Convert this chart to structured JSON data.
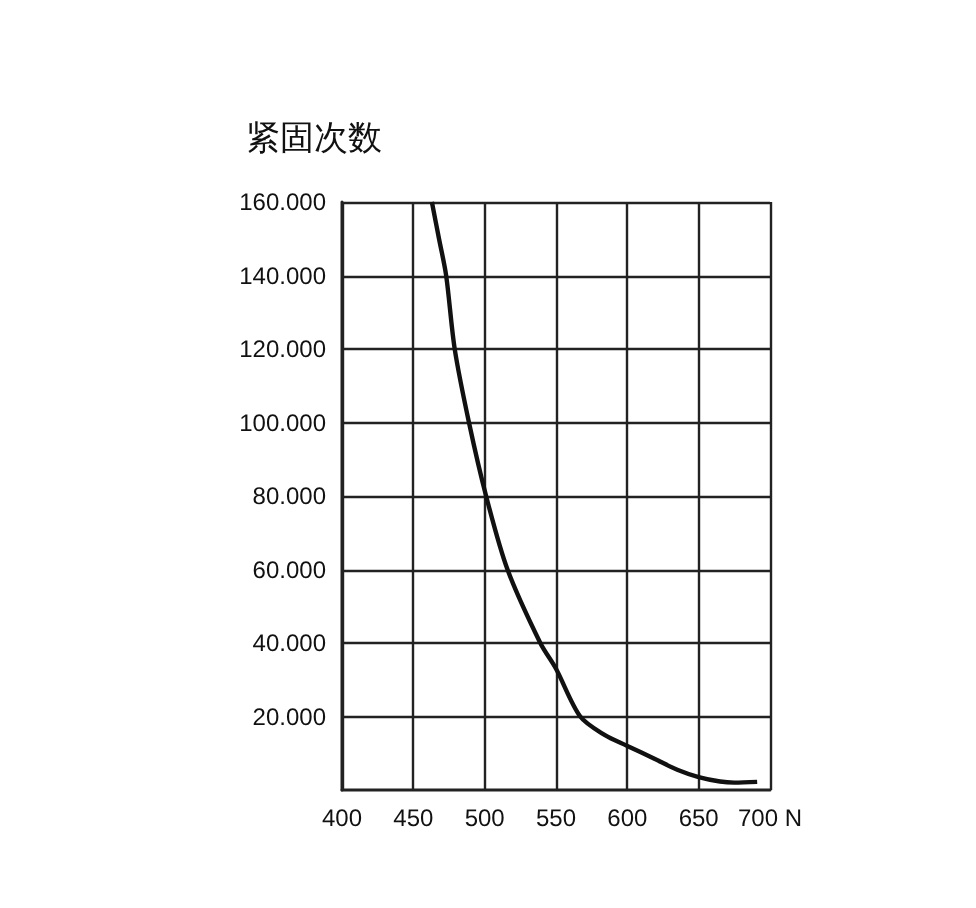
{
  "chart_data": {
    "type": "line",
    "title": "紧固次数",
    "x": [
      463,
      468,
      473,
      479,
      489,
      501,
      516,
      539,
      550,
      567,
      584,
      600,
      619,
      635,
      650,
      665,
      675,
      691
    ],
    "series": [
      {
        "color": "#111111",
        "values": [
          160000,
          150000,
          140000,
          120000,
          100000,
          80000,
          60000,
          40000,
          33000,
          20000,
          15000,
          12000,
          8500,
          5500,
          3500,
          2300,
          2000,
          2200
        ]
      }
    ],
    "xlim": [
      400,
      700
    ],
    "xticks": [
      400,
      450,
      500,
      550,
      600,
      650,
      {
        "value": 700,
        "label": "700 N"
      }
    ],
    "ylim": [
      0,
      160000
    ],
    "yticks": [
      {
        "value": 20000,
        "label": "20.000"
      },
      {
        "value": 40000,
        "label": "40.000"
      },
      {
        "value": 60000,
        "label": "60.000"
      },
      {
        "value": 80000,
        "label": "80.000"
      },
      {
        "value": 100000,
        "label": "100.000"
      },
      {
        "value": 120000,
        "label": "120.000"
      },
      {
        "value": 140000,
        "label": "140.000"
      },
      {
        "value": 160000,
        "label": "160.000"
      }
    ],
    "grid": true,
    "marker": "none",
    "line_style": "solid"
  }
}
